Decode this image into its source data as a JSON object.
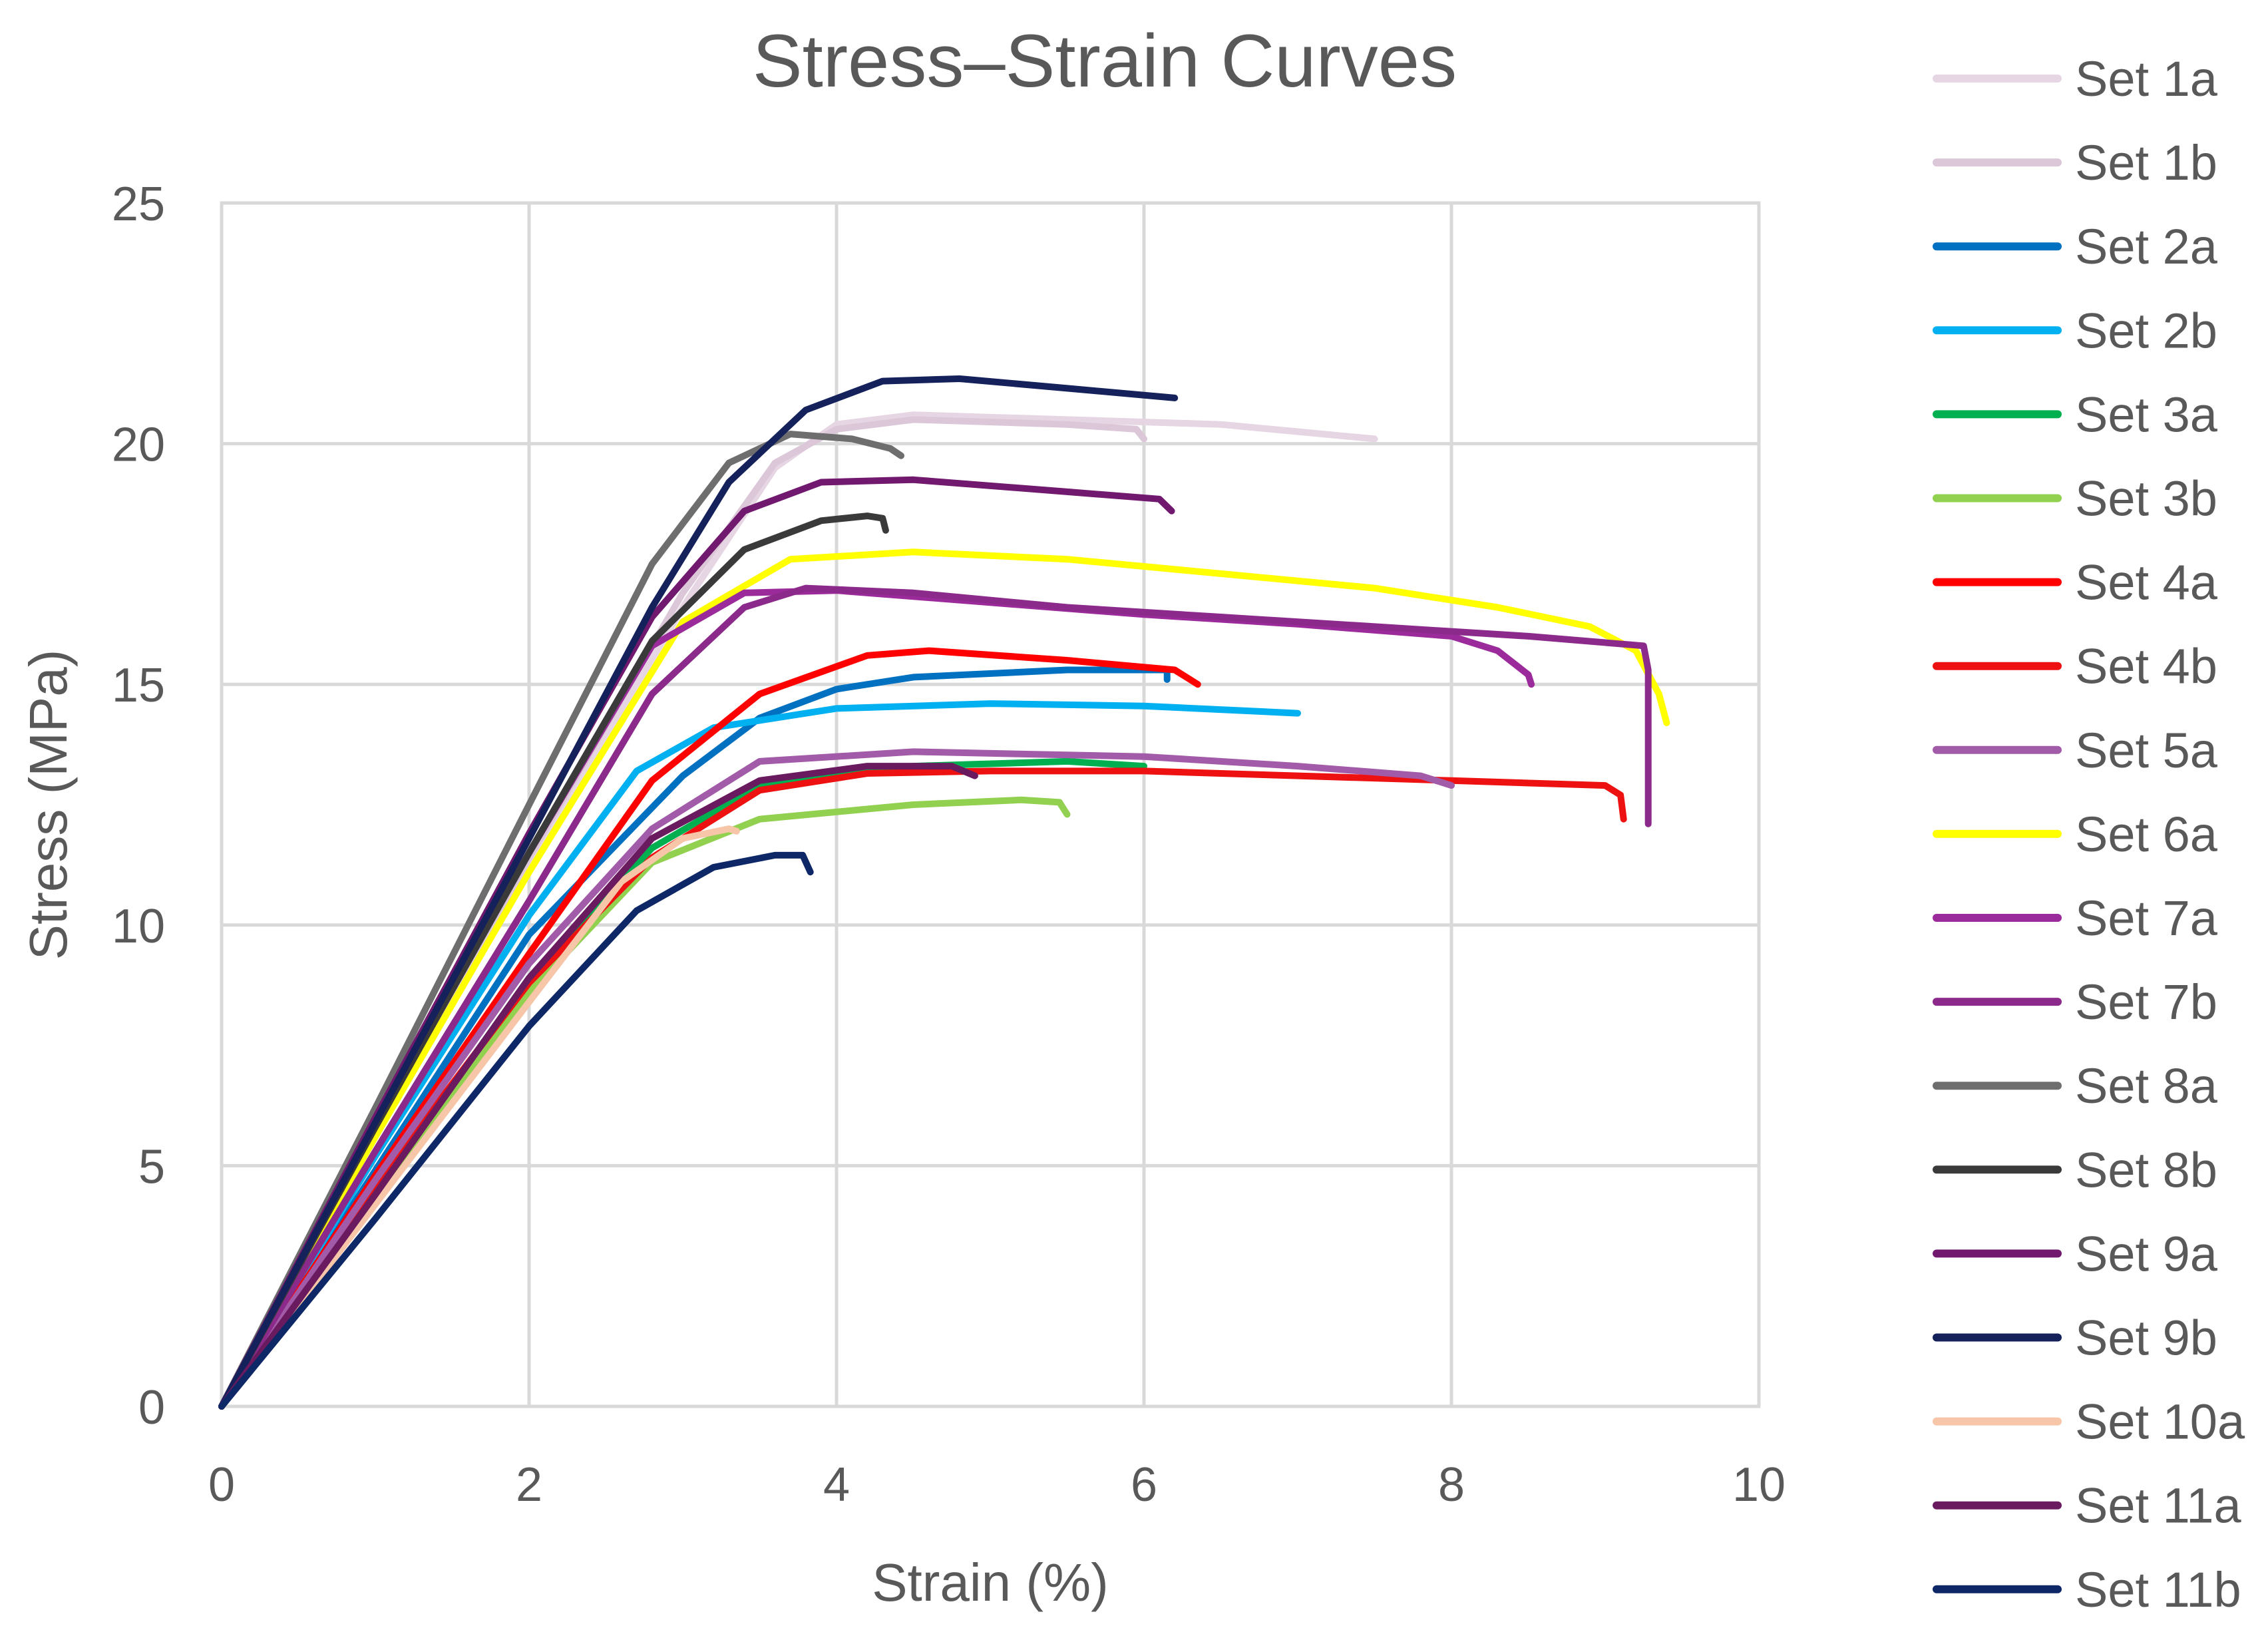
{
  "chart_data": {
    "type": "line",
    "title": "Stress–Strain Curves",
    "xlabel": "Strain (%)",
    "ylabel": "Stress (MPa)",
    "xlim": [
      0,
      10
    ],
    "ylim": [
      0,
      25
    ],
    "xticks": [
      0,
      2,
      4,
      6,
      8,
      10
    ],
    "yticks": [
      0,
      5,
      10,
      15,
      20,
      25
    ],
    "x_tick_labels": [
      "0",
      "2",
      "4",
      "6",
      "8",
      "10"
    ],
    "y_tick_labels": [
      "0",
      "5",
      "10",
      "15",
      "20",
      "25"
    ],
    "grid": true,
    "legend_position": "right",
    "series": [
      {
        "name": "Set 1a",
        "color": "#e6d5e3",
        "points": [
          [
            0,
            0
          ],
          [
            1,
            5.6
          ],
          [
            2,
            11.2
          ],
          [
            3,
            16.6
          ],
          [
            3.6,
            19.5
          ],
          [
            4.0,
            20.4
          ],
          [
            4.5,
            20.6
          ],
          [
            5.5,
            20.5
          ],
          [
            6.5,
            20.4
          ],
          [
            7.5,
            20.1
          ]
        ]
      },
      {
        "name": "Set 1b",
        "color": "#dcc7d9",
        "points": [
          [
            0,
            0
          ],
          [
            1,
            5.7
          ],
          [
            2,
            11.4
          ],
          [
            3,
            16.9
          ],
          [
            3.6,
            19.6
          ],
          [
            4.0,
            20.3
          ],
          [
            4.5,
            20.5
          ],
          [
            5.5,
            20.4
          ],
          [
            5.95,
            20.3
          ],
          [
            6.0,
            20.1
          ]
        ]
      },
      {
        "name": "Set 2a",
        "color": "#0070c0",
        "points": [
          [
            0,
            0
          ],
          [
            1,
            4.9
          ],
          [
            2,
            9.8
          ],
          [
            3,
            13.1
          ],
          [
            3.5,
            14.3
          ],
          [
            4,
            14.9
          ],
          [
            4.5,
            15.15
          ],
          [
            5.5,
            15.3
          ],
          [
            6.15,
            15.3
          ],
          [
            6.15,
            15.1
          ]
        ]
      },
      {
        "name": "Set 2b",
        "color": "#00b0f0",
        "points": [
          [
            0,
            0
          ],
          [
            1,
            5.2
          ],
          [
            2,
            10.2
          ],
          [
            2.7,
            13.2
          ],
          [
            3.2,
            14.1
          ],
          [
            4,
            14.5
          ],
          [
            5,
            14.6
          ],
          [
            6,
            14.55
          ],
          [
            7,
            14.4
          ]
        ]
      },
      {
        "name": "Set 3a",
        "color": "#00b050",
        "points": [
          [
            0,
            0
          ],
          [
            1,
            4.4
          ],
          [
            2,
            8.9
          ],
          [
            2.8,
            11.6
          ],
          [
            3.5,
            12.9
          ],
          [
            4.5,
            13.3
          ],
          [
            5.5,
            13.4
          ],
          [
            6.0,
            13.3
          ]
        ]
      },
      {
        "name": "Set 3b",
        "color": "#92d050",
        "points": [
          [
            0,
            0
          ],
          [
            1,
            4.3
          ],
          [
            2,
            8.6
          ],
          [
            2.8,
            11.3
          ],
          [
            3.5,
            12.2
          ],
          [
            4.5,
            12.5
          ],
          [
            5.2,
            12.6
          ],
          [
            5.45,
            12.55
          ],
          [
            5.5,
            12.3
          ]
        ]
      },
      {
        "name": "Set 4a",
        "color": "#ff0000",
        "points": [
          [
            0,
            0
          ],
          [
            1,
            4.8
          ],
          [
            2,
            9.4
          ],
          [
            2.8,
            13.0
          ],
          [
            3.5,
            14.8
          ],
          [
            4.2,
            15.6
          ],
          [
            4.6,
            15.7
          ],
          [
            5.5,
            15.5
          ],
          [
            6.2,
            15.3
          ],
          [
            6.35,
            15.0
          ]
        ]
      },
      {
        "name": "Set 4b",
        "color": "#ee1111",
        "points": [
          [
            0,
            0
          ],
          [
            1,
            4.6
          ],
          [
            2,
            8.8
          ],
          [
            2.8,
            11.4
          ],
          [
            3.5,
            12.8
          ],
          [
            4.2,
            13.15
          ],
          [
            5,
            13.2
          ],
          [
            6,
            13.2
          ],
          [
            7,
            13.1
          ],
          [
            8,
            13.0
          ],
          [
            9,
            12.9
          ],
          [
            9.1,
            12.7
          ],
          [
            9.12,
            12.2
          ]
        ]
      },
      {
        "name": "Set 5a",
        "color": "#a25ba8",
        "points": [
          [
            0,
            0
          ],
          [
            1,
            4.7
          ],
          [
            2,
            9.2
          ],
          [
            2.8,
            12.0
          ],
          [
            3.5,
            13.4
          ],
          [
            4.5,
            13.6
          ],
          [
            6,
            13.5
          ],
          [
            7,
            13.3
          ],
          [
            7.8,
            13.1
          ],
          [
            8.0,
            12.9
          ]
        ]
      },
      {
        "name": "Set 6a",
        "color": "#ffff00",
        "points": [
          [
            0,
            0
          ],
          [
            1,
            5.6
          ],
          [
            2,
            11.1
          ],
          [
            3,
            16.3
          ],
          [
            3.7,
            17.6
          ],
          [
            4.5,
            17.75
          ],
          [
            5.5,
            17.6
          ],
          [
            6.5,
            17.3
          ],
          [
            7.5,
            17.0
          ],
          [
            8.3,
            16.6
          ],
          [
            8.9,
            16.2
          ],
          [
            9.2,
            15.7
          ],
          [
            9.35,
            14.8
          ],
          [
            9.4,
            14.2
          ]
        ]
      },
      {
        "name": "Set 7a",
        "color": "#9b2b9a",
        "points": [
          [
            0,
            0
          ],
          [
            1,
            5.9
          ],
          [
            2,
            11.5
          ],
          [
            2.8,
            15.8
          ],
          [
            3.4,
            16.9
          ],
          [
            4,
            16.95
          ],
          [
            5,
            16.7
          ],
          [
            6,
            16.45
          ],
          [
            7,
            16.25
          ],
          [
            8,
            16.0
          ],
          [
            8.3,
            15.7
          ],
          [
            8.5,
            15.2
          ],
          [
            8.52,
            15.0
          ]
        ]
      },
      {
        "name": "Set 7b",
        "color": "#8b2a8a",
        "points": [
          [
            0,
            0
          ],
          [
            1,
            5.3
          ],
          [
            2,
            10.5
          ],
          [
            2.8,
            14.8
          ],
          [
            3.4,
            16.6
          ],
          [
            3.8,
            17.0
          ],
          [
            4.5,
            16.9
          ],
          [
            5.5,
            16.6
          ],
          [
            6.5,
            16.4
          ],
          [
            7.5,
            16.2
          ],
          [
            8.5,
            16.0
          ],
          [
            9.25,
            15.8
          ],
          [
            9.28,
            15.3
          ],
          [
            9.28,
            12.1
          ]
        ]
      },
      {
        "name": "Set 8a",
        "color": "#6e6e6e",
        "points": [
          [
            0,
            0
          ],
          [
            1,
            6.2
          ],
          [
            2,
            12.5
          ],
          [
            2.8,
            17.5
          ],
          [
            3.3,
            19.6
          ],
          [
            3.7,
            20.2
          ],
          [
            4.1,
            20.1
          ],
          [
            4.35,
            19.9
          ],
          [
            4.42,
            19.75
          ]
        ]
      },
      {
        "name": "Set 8b",
        "color": "#3a3a3a",
        "points": [
          [
            0,
            0
          ],
          [
            1,
            5.8
          ],
          [
            2,
            11.5
          ],
          [
            2.8,
            15.9
          ],
          [
            3.4,
            17.8
          ],
          [
            3.9,
            18.4
          ],
          [
            4.2,
            18.5
          ],
          [
            4.3,
            18.45
          ],
          [
            4.32,
            18.2
          ]
        ]
      },
      {
        "name": "Set 9a",
        "color": "#70196e",
        "points": [
          [
            0,
            0
          ],
          [
            1,
            6.0
          ],
          [
            2,
            11.9
          ],
          [
            2.8,
            16.4
          ],
          [
            3.4,
            18.6
          ],
          [
            3.9,
            19.2
          ],
          [
            4.5,
            19.25
          ],
          [
            5.5,
            19.0
          ],
          [
            6.1,
            18.85
          ],
          [
            6.18,
            18.6
          ]
        ]
      },
      {
        "name": "Set 9b",
        "color": "#14215a",
        "points": [
          [
            0,
            0
          ],
          [
            1,
            5.9
          ],
          [
            2,
            11.8
          ],
          [
            2.8,
            16.6
          ],
          [
            3.3,
            19.2
          ],
          [
            3.8,
            20.7
          ],
          [
            4.3,
            21.3
          ],
          [
            4.8,
            21.35
          ],
          [
            5.5,
            21.15
          ],
          [
            6.2,
            20.95
          ]
        ]
      },
      {
        "name": "Set 10a",
        "color": "#f7c5a8",
        "points": [
          [
            0,
            0
          ],
          [
            1,
            4.2
          ],
          [
            2,
            8.4
          ],
          [
            2.6,
            10.9
          ],
          [
            3.0,
            11.8
          ],
          [
            3.3,
            12.0
          ],
          [
            3.35,
            11.95
          ]
        ]
      },
      {
        "name": "Set 11a",
        "color": "#6a1a5e",
        "points": [
          [
            0,
            0
          ],
          [
            1,
            4.4
          ],
          [
            2,
            8.9
          ],
          [
            2.8,
            11.8
          ],
          [
            3.5,
            13.0
          ],
          [
            4.2,
            13.3
          ],
          [
            4.75,
            13.3
          ],
          [
            4.9,
            13.1
          ]
        ]
      },
      {
        "name": "Set 11b",
        "color": "#0e2766",
        "points": [
          [
            0,
            0
          ],
          [
            1,
            3.9
          ],
          [
            2,
            7.9
          ],
          [
            2.7,
            10.3
          ],
          [
            3.2,
            11.2
          ],
          [
            3.6,
            11.45
          ],
          [
            3.78,
            11.45
          ],
          [
            3.83,
            11.1
          ]
        ]
      }
    ]
  }
}
